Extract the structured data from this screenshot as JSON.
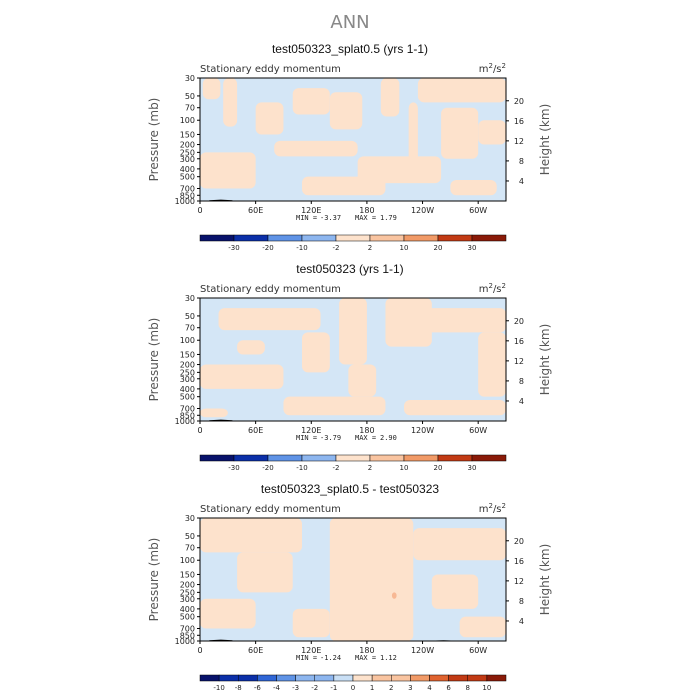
{
  "figure_title": "ANN",
  "colors": {
    "neg_blue": "#d4e6f6",
    "pos_orange": "#fde2cc",
    "pos_orange_dark": "#f7b894",
    "frame": "#000000",
    "colorbar": [
      "#08126b",
      "#0b2fa8",
      "#2f66d6",
      "#5f93e6",
      "#8db6ef",
      "#c9dff5",
      "#fde2cc",
      "#f9c4a0",
      "#f19a67",
      "#e0632f",
      "#c23a14",
      "#8a1a08"
    ]
  },
  "chart_data": [
    {
      "type": "heatmap",
      "title": "test050323_splat0.5 (yrs 1-1)",
      "left_label": "Stationary eddy momentum",
      "units": "m2/s2",
      "xlabel": "",
      "ylabel": "Pressure (mb)",
      "ylabel_right": "Height (km)",
      "x_ticks": [
        "0",
        "60E",
        "120E",
        "180",
        "120W",
        "60W"
      ],
      "x_tick_values": [
        0,
        60,
        120,
        180,
        240,
        300
      ],
      "xlim": [
        0,
        330
      ],
      "y_ticks": [
        "30",
        "50",
        "70",
        "100",
        "150",
        "200",
        "250",
        "300",
        "400",
        "500",
        "700",
        "850",
        "1000"
      ],
      "y_tick_values": [
        30,
        50,
        70,
        100,
        150,
        200,
        250,
        300,
        400,
        500,
        700,
        850,
        1000
      ],
      "ylim": [
        1000,
        30
      ],
      "height_ticks": [
        "4",
        "8",
        "12",
        "16",
        "20"
      ],
      "height_tick_values": [
        4,
        8,
        12,
        16,
        20
      ],
      "stats": {
        "min_label": "MIN =",
        "min": "-3.37",
        "max_label": "MAX =",
        "max": "1.79"
      },
      "colorbar_labels": [
        "-30",
        "-20",
        "-10",
        "-2",
        "2",
        "10",
        "20",
        "30"
      ],
      "colorbar_levels": [
        -30,
        -20,
        -10,
        -2,
        2,
        10,
        20,
        30
      ],
      "regions": [
        {
          "sign": "pos",
          "x": [
            3,
            22
          ],
          "p": [
            30,
            55
          ]
        },
        {
          "sign": "pos",
          "x": [
            25,
            40
          ],
          "p": [
            30,
            120
          ]
        },
        {
          "sign": "pos",
          "x": [
            60,
            90
          ],
          "p": [
            60,
            150
          ]
        },
        {
          "sign": "pos",
          "x": [
            100,
            140
          ],
          "p": [
            40,
            85
          ]
        },
        {
          "sign": "pos",
          "x": [
            140,
            175
          ],
          "p": [
            45,
            130
          ]
        },
        {
          "sign": "pos",
          "x": [
            195,
            215
          ],
          "p": [
            30,
            90
          ]
        },
        {
          "sign": "pos",
          "x": [
            225,
            235
          ],
          "p": [
            60,
            500
          ]
        },
        {
          "sign": "pos",
          "x": [
            235,
            330
          ],
          "p": [
            30,
            60
          ]
        },
        {
          "sign": "pos",
          "x": [
            260,
            300
          ],
          "p": [
            70,
            300
          ]
        },
        {
          "sign": "pos",
          "x": [
            300,
            330
          ],
          "p": [
            100,
            200
          ]
        },
        {
          "sign": "pos",
          "x": [
            0,
            60
          ],
          "p": [
            250,
            700
          ]
        },
        {
          "sign": "pos",
          "x": [
            80,
            170
          ],
          "p": [
            180,
            280
          ]
        },
        {
          "sign": "pos",
          "x": [
            170,
            260
          ],
          "p": [
            280,
            600
          ]
        },
        {
          "sign": "pos",
          "x": [
            110,
            200
          ],
          "p": [
            500,
            850
          ]
        },
        {
          "sign": "pos",
          "x": [
            270,
            320
          ],
          "p": [
            550,
            850
          ]
        }
      ],
      "topography": [
        {
          "x": [
            10,
            35
          ],
          "p": [
            960,
            1000
          ]
        }
      ]
    },
    {
      "type": "heatmap",
      "title": "test050323 (yrs 1-1)",
      "left_label": "Stationary eddy momentum",
      "units": "m2/s2",
      "xlabel": "",
      "ylabel": "Pressure (mb)",
      "ylabel_right": "Height (km)",
      "x_ticks": [
        "0",
        "60E",
        "120E",
        "180",
        "120W",
        "60W"
      ],
      "x_tick_values": [
        0,
        60,
        120,
        180,
        240,
        300
      ],
      "xlim": [
        0,
        330
      ],
      "y_ticks": [
        "30",
        "50",
        "70",
        "100",
        "150",
        "200",
        "250",
        "300",
        "400",
        "500",
        "700",
        "850",
        "1000"
      ],
      "y_tick_values": [
        30,
        50,
        70,
        100,
        150,
        200,
        250,
        300,
        400,
        500,
        700,
        850,
        1000
      ],
      "ylim": [
        1000,
        30
      ],
      "height_ticks": [
        "4",
        "8",
        "12",
        "16",
        "20"
      ],
      "height_tick_values": [
        4,
        8,
        12,
        16,
        20
      ],
      "stats": {
        "min_label": "MIN =",
        "min": "-3.79",
        "max_label": "MAX =",
        "max": "2.90"
      },
      "colorbar_labels": [
        "-30",
        "-20",
        "-10",
        "-2",
        "2",
        "10",
        "20",
        "30"
      ],
      "colorbar_levels": [
        -30,
        -20,
        -10,
        -2,
        2,
        10,
        20,
        30
      ],
      "regions": [
        {
          "sign": "pos",
          "x": [
            20,
            130
          ],
          "p": [
            40,
            75
          ]
        },
        {
          "sign": "pos",
          "x": [
            40,
            70
          ],
          "p": [
            100,
            150
          ]
        },
        {
          "sign": "pos",
          "x": [
            110,
            140
          ],
          "p": [
            80,
            250
          ]
        },
        {
          "sign": "pos",
          "x": [
            150,
            180
          ],
          "p": [
            30,
            200
          ]
        },
        {
          "sign": "pos",
          "x": [
            160,
            190
          ],
          "p": [
            200,
            500
          ]
        },
        {
          "sign": "pos",
          "x": [
            200,
            250
          ],
          "p": [
            30,
            120
          ]
        },
        {
          "sign": "pos",
          "x": [
            240,
            330
          ],
          "p": [
            40,
            80
          ]
        },
        {
          "sign": "pos",
          "x": [
            300,
            330
          ],
          "p": [
            80,
            500
          ]
        },
        {
          "sign": "pos",
          "x": [
            0,
            90
          ],
          "p": [
            200,
            400
          ]
        },
        {
          "sign": "pos",
          "x": [
            90,
            200
          ],
          "p": [
            500,
            850
          ]
        },
        {
          "sign": "pos",
          "x": [
            220,
            330
          ],
          "p": [
            550,
            850
          ]
        },
        {
          "sign": "pos",
          "x": [
            0,
            30
          ],
          "p": [
            700,
            900
          ]
        }
      ],
      "topography": [
        {
          "x": [
            10,
            35
          ],
          "p": [
            960,
            1000
          ]
        }
      ]
    },
    {
      "type": "heatmap",
      "title": "test050323_splat0.5 - test050323",
      "left_label": "Stationary eddy momentum",
      "units": "m2/s2",
      "xlabel": "",
      "ylabel": "Pressure (mb)",
      "ylabel_right": "Height (km)",
      "x_ticks": [
        "0",
        "60E",
        "120E",
        "180",
        "120W",
        "60W"
      ],
      "x_tick_values": [
        0,
        60,
        120,
        180,
        240,
        300
      ],
      "xlim": [
        0,
        330
      ],
      "y_ticks": [
        "30",
        "50",
        "70",
        "100",
        "150",
        "200",
        "250",
        "300",
        "400",
        "500",
        "700",
        "850",
        "1000"
      ],
      "y_tick_values": [
        30,
        50,
        70,
        100,
        150,
        200,
        250,
        300,
        400,
        500,
        700,
        850,
        1000
      ],
      "ylim": [
        1000,
        30
      ],
      "height_ticks": [
        "4",
        "8",
        "12",
        "16",
        "20"
      ],
      "height_tick_values": [
        4,
        8,
        12,
        16,
        20
      ],
      "stats": {
        "min_label": "MIN =",
        "min": "-1.24",
        "max_label": "MAX =",
        "max": "1.12"
      },
      "colorbar_labels": [
        "-10",
        "-8",
        "-6",
        "-4",
        "-3",
        "-2",
        "-1",
        "0",
        "1",
        "2",
        "3",
        "4",
        "6",
        "8",
        "10"
      ],
      "colorbar_levels": [
        -10,
        -8,
        -6,
        -4,
        -3,
        -2,
        -1,
        0,
        1,
        2,
        3,
        4,
        6,
        8,
        10
      ],
      "regions": [
        {
          "sign": "pos",
          "x": [
            0,
            110
          ],
          "p": [
            30,
            80
          ]
        },
        {
          "sign": "pos",
          "x": [
            40,
            100
          ],
          "p": [
            80,
            250
          ]
        },
        {
          "sign": "pos",
          "x": [
            140,
            230
          ],
          "p": [
            30,
            1000
          ]
        },
        {
          "sign": "pos",
          "x": [
            230,
            330
          ],
          "p": [
            40,
            100
          ]
        },
        {
          "sign": "pos",
          "x": [
            250,
            300
          ],
          "p": [
            150,
            400
          ]
        },
        {
          "sign": "pos",
          "x": [
            0,
            60
          ],
          "p": [
            300,
            700
          ]
        },
        {
          "sign": "pos",
          "x": [
            100,
            140
          ],
          "p": [
            400,
            900
          ]
        },
        {
          "sign": "pos",
          "x": [
            280,
            330
          ],
          "p": [
            500,
            900
          ]
        },
        {
          "sign": "posdark",
          "x": [
            207,
            212
          ],
          "p": [
            250,
            300
          ]
        }
      ],
      "topography": [
        {
          "x": [
            10,
            35
          ],
          "p": [
            960,
            1000
          ]
        },
        {
          "x": [
            250,
            275
          ],
          "p": [
            980,
            1000
          ]
        }
      ]
    }
  ]
}
